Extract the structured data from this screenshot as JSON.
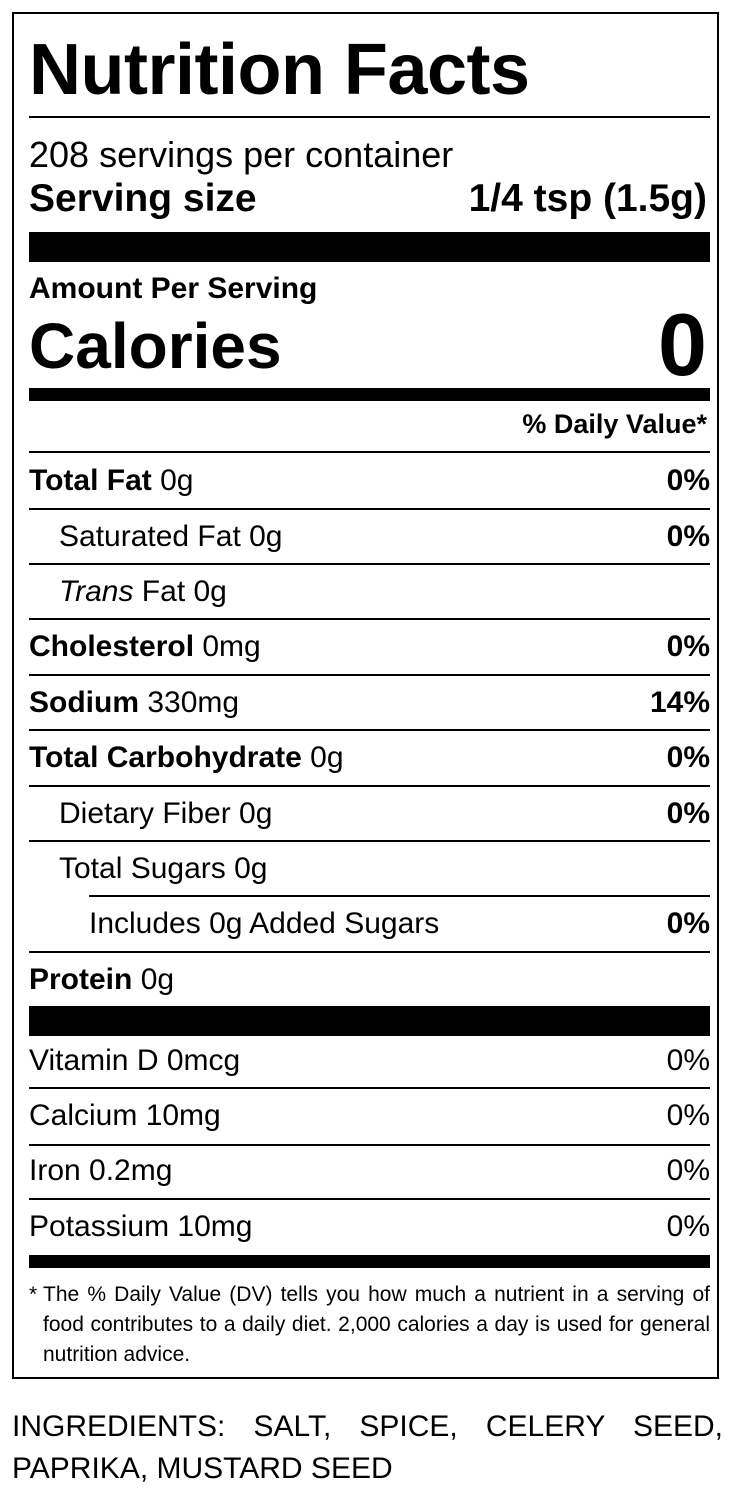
{
  "panel": {
    "title": "Nutrition Facts",
    "servings_per_container": "208 servings per container",
    "serving_size_label": "Serving size",
    "serving_size_value": "1/4 tsp (1.5g)",
    "amount_per_serving": "Amount Per Serving",
    "calories_label": "Calories",
    "calories_value": "0",
    "dv_header": "% Daily Value*"
  },
  "nutrients": [
    {
      "name": "Total Fat",
      "amount": " 0g",
      "dv": "0%"
    },
    {
      "name": "Saturated Fat 0g",
      "amount": "",
      "dv": "0%"
    },
    {
      "name": "Trans",
      "amount": " Fat 0g",
      "dv": ""
    },
    {
      "name": "Cholesterol",
      "amount": " 0mg",
      "dv": "0%"
    },
    {
      "name": "Sodium",
      "amount": " 330mg",
      "dv": "14%"
    },
    {
      "name": "Total Carbohydrate",
      "amount": " 0g",
      "dv": "0%"
    },
    {
      "name": "Dietary Fiber 0g",
      "amount": "",
      "dv": "0%"
    },
    {
      "name": "Total Sugars 0g",
      "amount": "",
      "dv": ""
    },
    {
      "name": "Includes 0g Added Sugars",
      "amount": "",
      "dv": "0%"
    },
    {
      "name": "Protein",
      "amount": " 0g",
      "dv": ""
    }
  ],
  "vitamins": [
    {
      "name": "Vitamin D 0mcg",
      "dv": "0%"
    },
    {
      "name": "Calcium 10mg",
      "dv": "0%"
    },
    {
      "name": "Iron 0.2mg",
      "dv": "0%"
    },
    {
      "name": "Potassium 10mg",
      "dv": "0%"
    }
  ],
  "footnote": {
    "star": "*",
    "text": "The % Daily Value (DV) tells you how much a nutrient in a serving of food contributes to a daily diet. 2,000 calories a day is used for general nutrition advice."
  },
  "ingredients": "INGREDIENTS: SALT, SPICE, CELERY SEED, PAPRIKA, MUSTARD SEED"
}
